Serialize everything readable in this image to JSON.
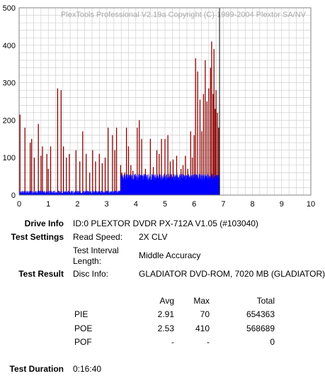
{
  "chart_data": {
    "type": "bar",
    "watermark": "PlexTools Professional V2.19a Copyright (C) 1999-2004 Plextor SA/NV",
    "xlim": [
      0,
      10
    ],
    "ylim": [
      0,
      500
    ],
    "x_ticks": [
      "0",
      "1",
      "2",
      "3",
      "4",
      "5",
      "6",
      "7",
      "8",
      "9",
      "10"
    ],
    "y_ticks": [
      "0",
      "100",
      "200",
      "300",
      "400",
      "500"
    ],
    "grid": true,
    "marker_x": 6.87,
    "colors": {
      "poe": "#8b0000",
      "pie": "#0000ff",
      "grid": "#c8c8c8",
      "marker": "#000000"
    },
    "series": [
      {
        "key": "poe",
        "style": "spikes",
        "points": [
          [
            0.03,
            215
          ],
          [
            0.2,
            180
          ],
          [
            0.38,
            140
          ],
          [
            0.43,
            150
          ],
          [
            0.52,
            100
          ],
          [
            0.66,
            190
          ],
          [
            0.75,
            105
          ],
          [
            0.8,
            130
          ],
          [
            0.95,
            110
          ],
          [
            1.0,
            70
          ],
          [
            1.08,
            130
          ],
          [
            1.32,
            285
          ],
          [
            1.44,
            280
          ],
          [
            1.52,
            130
          ],
          [
            1.62,
            100
          ],
          [
            1.72,
            110
          ],
          [
            1.95,
            120
          ],
          [
            2.08,
            90
          ],
          [
            2.18,
            170
          ],
          [
            2.3,
            110
          ],
          [
            2.42,
            60
          ],
          [
            2.52,
            120
          ],
          [
            2.62,
            90
          ],
          [
            2.75,
            110
          ],
          [
            2.85,
            85
          ],
          [
            2.95,
            100
          ],
          [
            3.05,
            180
          ],
          [
            3.2,
            160
          ],
          [
            3.28,
            120
          ],
          [
            3.34,
            180
          ],
          [
            3.48,
            80
          ],
          [
            3.52,
            60
          ],
          [
            3.62,
            60
          ],
          [
            3.68,
            180
          ],
          [
            3.75,
            130
          ],
          [
            3.83,
            80
          ],
          [
            3.9,
            65
          ],
          [
            4.05,
            180
          ],
          [
            4.12,
            200
          ],
          [
            4.2,
            150
          ],
          [
            4.33,
            70
          ],
          [
            4.5,
            150
          ],
          [
            4.6,
            75
          ],
          [
            4.72,
            120
          ],
          [
            4.8,
            110
          ],
          [
            4.88,
            150
          ],
          [
            5.0,
            150
          ],
          [
            5.1,
            160
          ],
          [
            5.18,
            90
          ],
          [
            5.28,
            95
          ],
          [
            5.4,
            105
          ],
          [
            5.55,
            70
          ],
          [
            5.62,
            80
          ],
          [
            5.7,
            105
          ],
          [
            5.78,
            70
          ],
          [
            5.88,
            170
          ],
          [
            5.94,
            100
          ],
          [
            6.0,
            160
          ],
          [
            6.05,
            365
          ],
          [
            6.12,
            330
          ],
          [
            6.2,
            255
          ],
          [
            6.26,
            170
          ],
          [
            6.32,
            270
          ],
          [
            6.38,
            360
          ],
          [
            6.44,
            250
          ],
          [
            6.5,
            285
          ],
          [
            6.56,
            340
          ],
          [
            6.6,
            410
          ],
          [
            6.65,
            270
          ],
          [
            6.68,
            390
          ],
          [
            6.72,
            230
          ],
          [
            6.75,
            280
          ],
          [
            6.8,
            220
          ],
          [
            6.84,
            180
          ]
        ]
      },
      {
        "key": "pie",
        "style": "band",
        "segments": [
          {
            "x0": 0.0,
            "x1": 3.48,
            "base": 7,
            "jitter": 5
          },
          {
            "x0": 3.48,
            "x1": 6.87,
            "base": 47,
            "jitter": 10
          }
        ]
      }
    ]
  },
  "info": {
    "drive_label": "Drive Info",
    "drive_value": "ID:0 PLEXTOR DVDR PX-712A V1.05 (#103040)",
    "settings_label": "Test Settings",
    "read_speed_label": "Read Speed:",
    "read_speed_value": "2X CLV",
    "interval_label_1": "Test Interval",
    "interval_label_2": "Length:",
    "interval_value": "Middle Accuracy",
    "result_label": "Test Result",
    "disc_info_label": "Disc Info:",
    "disc_info_value": "GLADIATOR DVD-ROM, 7020 MB (GLADIATOR)",
    "duration_label": "Test Duration",
    "duration_value": "0:16:40"
  },
  "stats": {
    "headers": {
      "avg": "Avg",
      "max": "Max",
      "total": "Total"
    },
    "rows": [
      {
        "name": "PIE",
        "avg": "2.91",
        "max": "70",
        "total": "654363"
      },
      {
        "name": "POE",
        "avg": "2.53",
        "max": "410",
        "total": "568689"
      },
      {
        "name": "POF",
        "avg": "-",
        "max": "-",
        "total": "0"
      }
    ]
  }
}
